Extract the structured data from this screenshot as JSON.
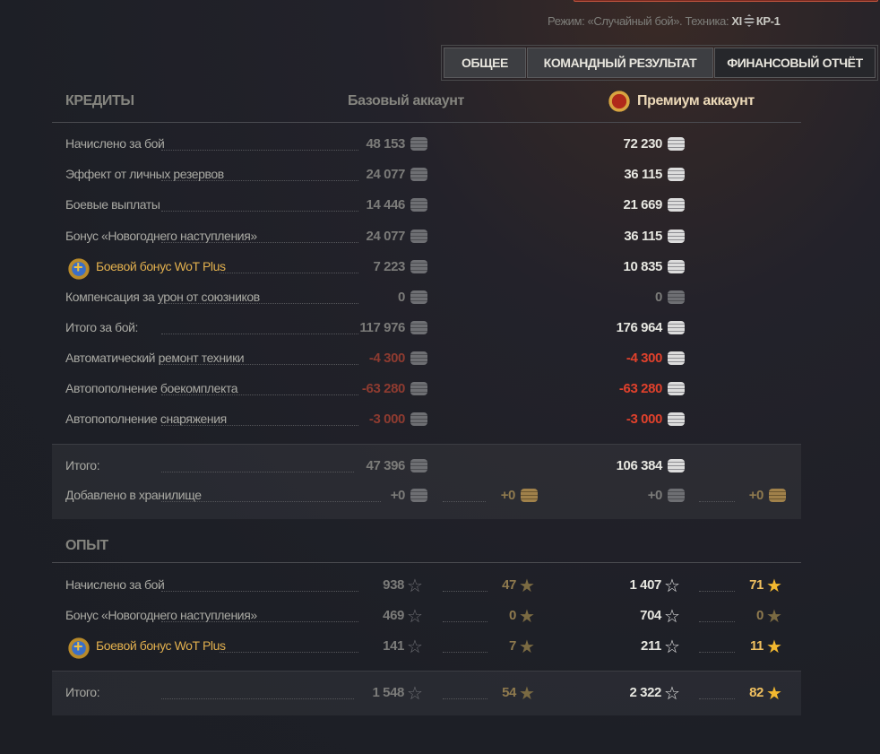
{
  "header": {
    "mode_prefix": "Режим: «Случайный бой». Техника:",
    "tier": "XI",
    "vehicle": "КР-1"
  },
  "tabs": [
    {
      "label": "ОБЩЕЕ"
    },
    {
      "label": "КОМАНДНЫЙ РЕЗУЛЬТАТ"
    },
    {
      "label": "ФИНАНСОВЫЙ ОТЧЁТ",
      "active": true
    }
  ],
  "credits": {
    "title": "КРЕДИТЫ",
    "base_header": "Базовый аккаунт",
    "premium_header": "Премиум аккаунт",
    "rows": [
      {
        "label": "Начислено за бой",
        "base": "48 153",
        "premium": "72 230"
      },
      {
        "label": "Эффект от личных резервов",
        "base": "24 077",
        "premium": "36 115"
      },
      {
        "label": "Боевые выплаты",
        "base": "14 446",
        "premium": "21 669"
      },
      {
        "label": "Бонус «Новогоднего наступления»",
        "base": "24 077",
        "premium": "36 115"
      },
      {
        "label": "Боевой бонус WoT Plus",
        "base": "7 223",
        "premium": "10 835",
        "wotplus": true
      },
      {
        "label": "Компенсация за урон от союзников",
        "base": "0",
        "premium": "0",
        "dim": true
      },
      {
        "label": "Итого за бой:",
        "base": "117 976",
        "premium": "176 964"
      },
      {
        "label": "Автоматический ремонт техники",
        "base": "-4 300",
        "premium": "-4 300",
        "negative": true
      },
      {
        "label": "Автопополнение боекомплекта",
        "base": "-63 280",
        "premium": "-63 280",
        "negative": true
      },
      {
        "label": "Автопополнение снаряжения",
        "base": "-3 000",
        "premium": "-3 000",
        "negative": true
      }
    ],
    "total": {
      "label": "Итого:",
      "base": "47 396",
      "premium": "106 384"
    },
    "storage": {
      "label": "Добавлено в хранилище",
      "base": "+0",
      "base_gold": "+0",
      "premium": "+0",
      "premium_gold": "+0"
    }
  },
  "experience": {
    "title": "ОПЫТ",
    "rows": [
      {
        "label": "Начислено за бой",
        "base": "938",
        "base_free": "47",
        "premium": "1 407",
        "premium_free": "71"
      },
      {
        "label": "Бонус «Новогоднего наступления»",
        "base": "469",
        "base_free": "0",
        "premium": "704",
        "premium_free": "0"
      },
      {
        "label": "Боевой бонус WoT Plus",
        "base": "141",
        "base_free": "7",
        "premium": "211",
        "premium_free": "11",
        "wotplus": true
      }
    ],
    "total": {
      "label": "Итого:",
      "base": "1 548",
      "base_free": "54",
      "premium": "2 322",
      "premium_free": "82"
    }
  }
}
